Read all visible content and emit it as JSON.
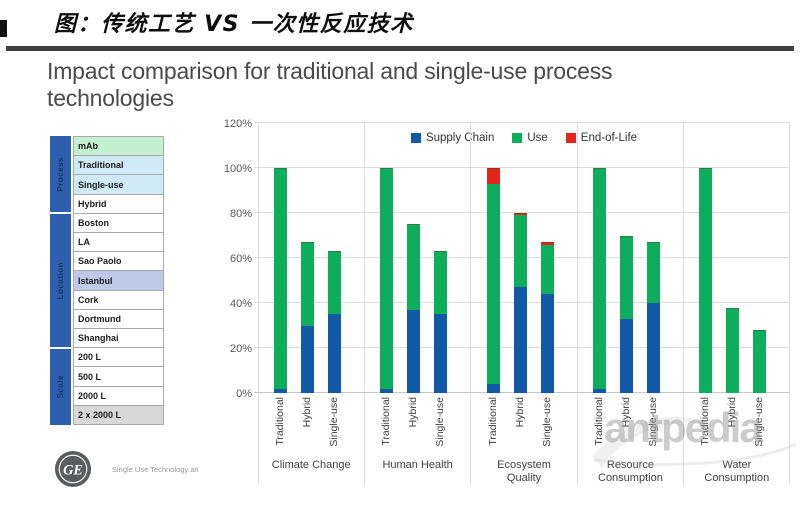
{
  "header": {
    "cn_title": "图：传统工艺 VS 一次性反应技术",
    "en_title_line1": "Impact comparison for traditional and single-use process",
    "en_title_line2": "technologies"
  },
  "sidebar": {
    "groups": [
      {
        "label": "Process",
        "rows": [
          {
            "label": "mAb",
            "bg": "#c3f0d1"
          },
          {
            "label": "Traditional",
            "bg": "#cfe9f6"
          },
          {
            "label": "Single-use",
            "bg": "#cfe9f6"
          },
          {
            "label": "Hybrid",
            "bg": "#ffffff"
          }
        ]
      },
      {
        "label": "Location",
        "rows": [
          {
            "label": "Boston",
            "bg": "#ffffff"
          },
          {
            "label": "LA",
            "bg": "#ffffff"
          },
          {
            "label": "Sao Paolo",
            "bg": "#ffffff"
          },
          {
            "label": "Istanbul",
            "bg": "#bcc9e8"
          },
          {
            "label": "Cork",
            "bg": "#ffffff"
          },
          {
            "label": "Dortmund",
            "bg": "#ffffff"
          },
          {
            "label": "Shanghai",
            "bg": "#ffffff"
          }
        ]
      },
      {
        "label": "Scale",
        "rows": [
          {
            "label": "200 L",
            "bg": "#ffffff"
          },
          {
            "label": "500 L",
            "bg": "#ffffff"
          },
          {
            "label": "2000 L",
            "bg": "#ffffff"
          },
          {
            "label": "2 x 2000 L",
            "bg": "#d8d8d8"
          }
        ]
      }
    ]
  },
  "chart_data": {
    "type": "bar",
    "stacked": true,
    "title": "",
    "xlabel": "",
    "ylabel": "",
    "ylim": [
      0,
      120
    ],
    "yticks": [
      "0%",
      "20%",
      "40%",
      "60%",
      "80%",
      "100%",
      "120%"
    ],
    "grid": true,
    "legend_position": "top-center",
    "categories": [
      "Climate Change",
      "Human Health",
      "Ecosystem Quality",
      "Resource Consumption",
      "Water Consumption"
    ],
    "bar_labels": [
      "Traditional",
      "Hybrid",
      "Single-use"
    ],
    "series": [
      {
        "name": "Supply Chain",
        "color": "#1159a6",
        "values": [
          [
            2,
            30,
            35
          ],
          [
            2,
            37,
            35
          ],
          [
            4,
            47,
            44
          ],
          [
            2,
            33,
            40
          ],
          [
            0,
            0,
            0
          ]
        ]
      },
      {
        "name": "Use",
        "color": "#0cae5c",
        "values": [
          [
            98,
            37,
            28
          ],
          [
            98,
            38,
            28
          ],
          [
            89,
            32,
            22
          ],
          [
            98,
            37,
            27
          ],
          [
            100,
            38,
            28
          ]
        ]
      },
      {
        "name": "End-of-Life",
        "color": "#e52519",
        "values": [
          [
            0,
            0,
            0
          ],
          [
            0,
            0,
            0
          ],
          [
            7,
            1,
            1
          ],
          [
            0,
            0,
            0
          ],
          [
            0,
            0,
            0
          ]
        ]
      }
    ],
    "bar_totals_percent": {
      "Climate Change": [
        100,
        67,
        63
      ],
      "Human Health": [
        100,
        75,
        63
      ],
      "Ecosystem Quality": [
        100,
        80,
        67
      ],
      "Resource Consumption": [
        100,
        70,
        67
      ],
      "Water Consumption": [
        100,
        38,
        28
      ]
    }
  },
  "footer": {
    "brand": "GE",
    "text": "Single Use Technology an"
  },
  "watermark": {
    "text": "antpedia"
  }
}
